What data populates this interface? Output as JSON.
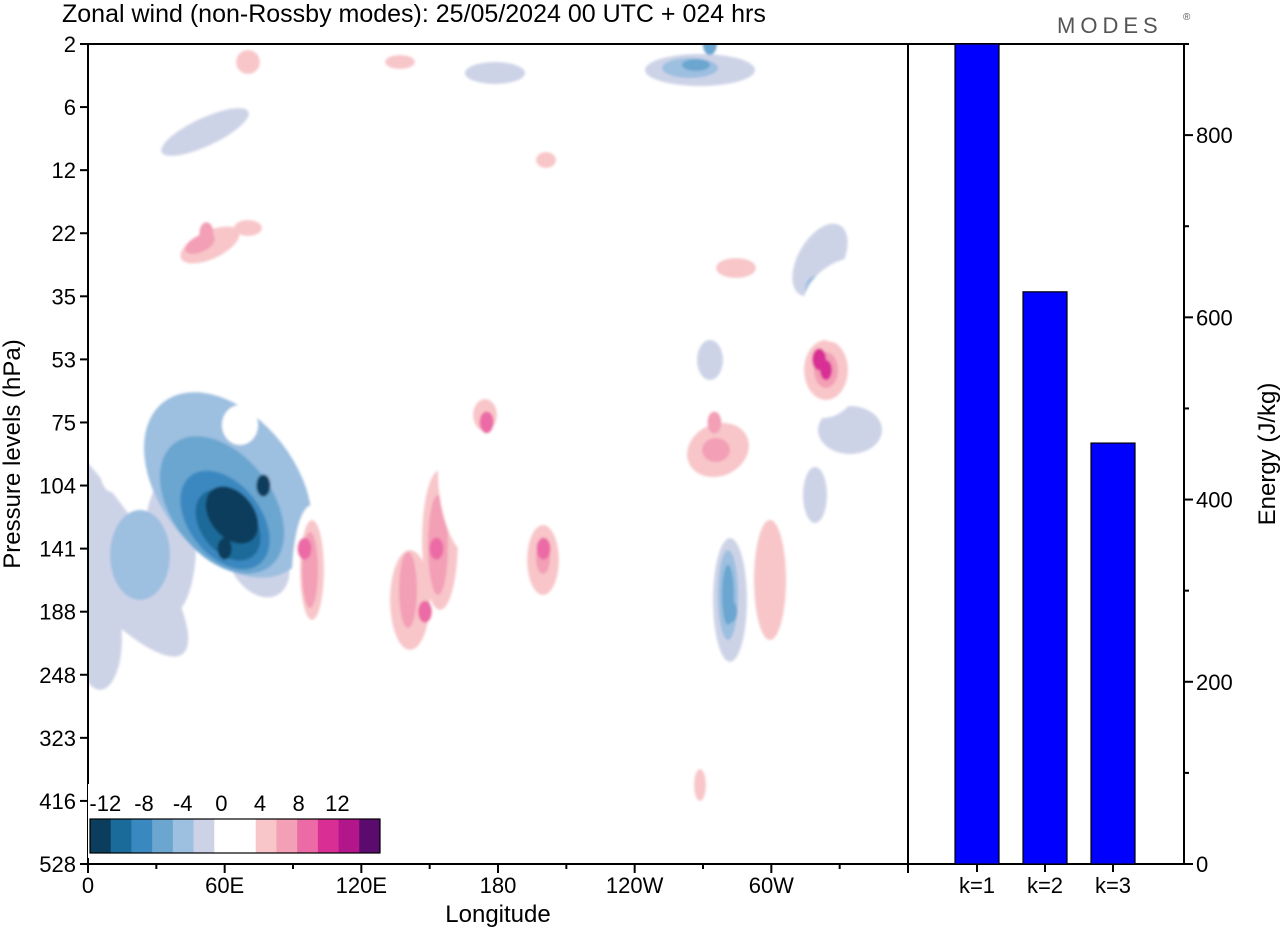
{
  "title": "Zonal wind (non-Rossby modes):  25/05/2024  00 UTC  + 024 hrs",
  "logo": "MODES",
  "logo_mark": "®",
  "chart_data": [
    {
      "type": "heatmap",
      "title": "Zonal wind (non-Rossby modes):  25/05/2024  00 UTC  + 024 hrs",
      "xlabel": "Longitude",
      "ylabel": "Pressure levels (hPa)",
      "xticks": [
        "0",
        "60E",
        "120E",
        "180",
        "120W",
        "60W"
      ],
      "xtick_values": [
        0,
        60,
        120,
        180,
        240,
        300
      ],
      "xlim": [
        0,
        360
      ],
      "yticks": [
        "2",
        "6",
        "12",
        "22",
        "35",
        "53",
        "75",
        "104",
        "141",
        "188",
        "248",
        "323",
        "416",
        "528"
      ],
      "colorbar": {
        "labels": [
          "-12",
          "-8",
          "-4",
          "0",
          "4",
          "8",
          "12"
        ],
        "label_values": [
          -12,
          -8,
          -4,
          0,
          4,
          8,
          12
        ],
        "levels": [
          -14,
          -12,
          -10,
          -8,
          -6,
          -4,
          -2,
          2,
          4,
          6,
          8,
          10,
          12,
          14
        ],
        "colors": [
          "#0b3d5c",
          "#1a6a9a",
          "#3a88c0",
          "#6aa6d0",
          "#9dbfe0",
          "#cdd3e7",
          "#ffffff",
          "#ffffff",
          "#f8c6c9",
          "#f39fb6",
          "#ec6aa6",
          "#d92e94",
          "#b3158a",
          "#5b0b6e"
        ]
      },
      "features": [
        {
          "lon": 60,
          "level": "141",
          "value": -14
        },
        {
          "lon": 77,
          "level": "104",
          "value": -14
        },
        {
          "lon": 95,
          "level": "141",
          "value": 8
        },
        {
          "lon": 148,
          "level": "188",
          "value": 8
        },
        {
          "lon": 153,
          "level": "141",
          "value": 8
        },
        {
          "lon": 175,
          "level": "75",
          "value": 8
        },
        {
          "lon": 200,
          "level": "141",
          "value": 8
        },
        {
          "lon": 275,
          "level": "75",
          "value": 6
        },
        {
          "lon": 282,
          "level": "188",
          "value": -8
        },
        {
          "lon": 321,
          "level": "53",
          "value": 10
        },
        {
          "lon": 273,
          "level": "2",
          "value": -8
        },
        {
          "lon": 52,
          "level": "22",
          "value": 6
        }
      ]
    },
    {
      "type": "bar",
      "categories": [
        "k=1",
        "k=2",
        "k=3"
      ],
      "values": [
        900,
        628,
        462
      ],
      "ylabel": "Energy (J/kg)",
      "ylim": [
        0,
        900
      ],
      "yticks": [
        0,
        200,
        400,
        600,
        800
      ],
      "bar_color": "#0000ff"
    }
  ]
}
